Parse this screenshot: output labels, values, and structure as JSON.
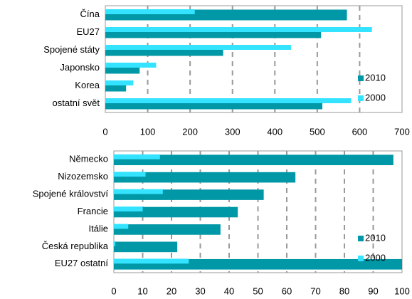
{
  "chart_data": [
    {
      "type": "barh",
      "categories": [
        "Čína",
        "EU27",
        "Spojené státy",
        "Japonsko",
        "Korea",
        "ostatní svět"
      ],
      "series": [
        {
          "name": "2010",
          "color": "#0098a6",
          "values": [
            570,
            509,
            278,
            81,
            49,
            512
          ]
        },
        {
          "name": "2000",
          "color": "#33e3ff",
          "values": [
            211,
            629,
            438,
            120,
            66,
            580
          ]
        }
      ],
      "xlim": [
        0,
        700
      ],
      "xticks": [
        0,
        100,
        200,
        300,
        400,
        500,
        600,
        700
      ],
      "grid": true,
      "legend": "right"
    },
    {
      "type": "barh",
      "categories": [
        "Německo",
        "Nizozemsko",
        "Spojené království",
        "Francie",
        "Itálie",
        "Česká republika",
        "EU27 ostatní"
      ],
      "series": [
        {
          "name": "2010",
          "color": "#0098a6",
          "values": [
            97,
            63,
            52,
            43,
            37,
            22,
            100
          ]
        },
        {
          "name": "2000",
          "color": "#33e3ff",
          "values": [
            16,
            11,
            17,
            10,
            5,
            0.5,
            26
          ]
        }
      ],
      "xlim": [
        0,
        100
      ],
      "xticks": [
        0,
        10,
        20,
        30,
        40,
        50,
        60,
        70,
        80,
        90,
        100
      ],
      "grid": true,
      "legend": "right"
    }
  ]
}
